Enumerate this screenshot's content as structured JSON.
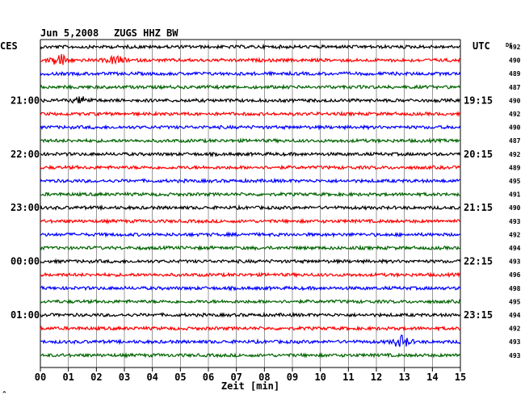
{
  "header": {
    "date": "Jun 5,2008",
    "station": "ZUGS HHZ BW"
  },
  "labels": {
    "left_zone": "CES",
    "right_zone": "UTC",
    "dc_header": "DC"
  },
  "chart_data": {
    "type": "line",
    "title": "",
    "xlabel": "Zeit [min]",
    "ylabel": "",
    "xlim": [
      0,
      15
    ],
    "x_ticks": [
      "00",
      "01",
      "02",
      "03",
      "04",
      "05",
      "06",
      "07",
      "08",
      "09",
      "10",
      "11",
      "12",
      "13",
      "14",
      "15"
    ],
    "trace_colors": [
      "#000000",
      "#ff0000",
      "#0000ff",
      "#006400"
    ],
    "left_time_labels": [
      {
        "row": 4,
        "label": "21:00"
      },
      {
        "row": 8,
        "label": "22:00"
      },
      {
        "row": 12,
        "label": "23:00"
      },
      {
        "row": 16,
        "label": "00:00"
      },
      {
        "row": 20,
        "label": "01:00"
      }
    ],
    "right_time_labels": [
      {
        "row": 4,
        "label": "19:15"
      },
      {
        "row": 8,
        "label": "20:15"
      },
      {
        "row": 12,
        "label": "21:15"
      },
      {
        "row": 16,
        "label": "22:15"
      },
      {
        "row": 20,
        "label": "23:15"
      }
    ],
    "dc_offsets": [
      492,
      490,
      489,
      487,
      490,
      492,
      490,
      487,
      492,
      489,
      495,
      491,
      490,
      493,
      492,
      494,
      493,
      496,
      498,
      495,
      494,
      492,
      493,
      493
    ],
    "events": [
      {
        "row": 1,
        "x_min": 0.7,
        "strength": 3.0
      },
      {
        "row": 1,
        "x_min": 2.7,
        "strength": 2.0
      },
      {
        "row": 4,
        "x_min": 1.5,
        "strength": 1.6
      },
      {
        "row": 22,
        "x_min": 12.9,
        "strength": 3.0
      }
    ],
    "footer_mark": "^"
  }
}
